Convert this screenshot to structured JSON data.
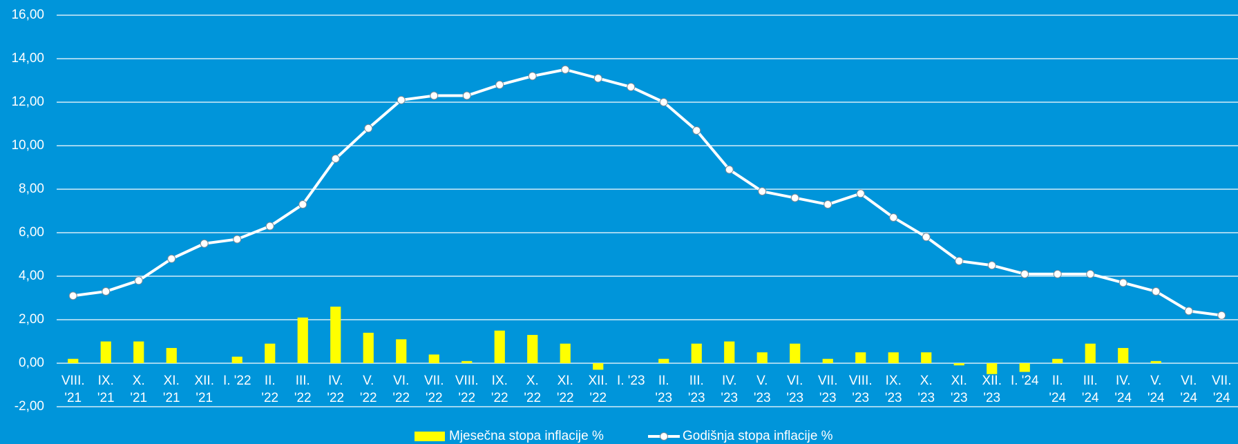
{
  "chart_data": {
    "type": "bar-line",
    "categories": [
      [
        "VIII.",
        "'21"
      ],
      [
        "IX.",
        "'21"
      ],
      [
        "X.",
        "'21"
      ],
      [
        "XI.",
        "'21"
      ],
      [
        "XII.",
        "'21"
      ],
      [
        "I. '22"
      ],
      [
        "II.",
        "'22"
      ],
      [
        "III.",
        "'22"
      ],
      [
        "IV.",
        "'22"
      ],
      [
        "V.",
        "'22"
      ],
      [
        "VI.",
        "'22"
      ],
      [
        "VII.",
        "'22"
      ],
      [
        "VIII.",
        "'22"
      ],
      [
        "IX.",
        "'22"
      ],
      [
        "X.",
        "'22"
      ],
      [
        "XI.",
        "'22"
      ],
      [
        "XII.",
        "'22"
      ],
      [
        "I. '23"
      ],
      [
        "II.",
        "'23"
      ],
      [
        "III.",
        "'23"
      ],
      [
        "IV.",
        "'23"
      ],
      [
        "V.",
        "'23"
      ],
      [
        "VI.",
        "'23"
      ],
      [
        "VII.",
        "'23"
      ],
      [
        "VIII.",
        "'23"
      ],
      [
        "IX.",
        "'23"
      ],
      [
        "X.",
        "'23"
      ],
      [
        "XI.",
        "'23"
      ],
      [
        "XII.",
        "'23"
      ],
      [
        "I. '24"
      ],
      [
        "II.",
        "'24"
      ],
      [
        "III.",
        "'24"
      ],
      [
        "IV.",
        "'24"
      ],
      [
        "V.",
        "'24"
      ],
      [
        "VI.",
        "'24"
      ],
      [
        "VII.",
        "'24"
      ]
    ],
    "series": [
      {
        "name": "Mjesečna stopa inflacije %",
        "type": "bar",
        "color": "#ffff00",
        "values": [
          0.2,
          1.0,
          1.0,
          0.7,
          0.0,
          0.3,
          0.9,
          2.1,
          2.6,
          1.4,
          1.1,
          0.4,
          0.1,
          1.5,
          1.3,
          0.9,
          -0.3,
          0.0,
          0.2,
          0.9,
          1.0,
          0.5,
          0.9,
          0.2,
          0.5,
          0.5,
          0.5,
          -0.1,
          -0.5,
          -0.4,
          0.2,
          0.9,
          0.7,
          0.1,
          0.0,
          0.0
        ]
      },
      {
        "name": "Godišnja stopa inflacije %",
        "type": "line",
        "color": "#ffffff",
        "values": [
          3.1,
          3.3,
          3.8,
          4.8,
          5.5,
          5.7,
          6.3,
          7.3,
          9.4,
          10.8,
          12.1,
          12.3,
          12.3,
          12.8,
          13.2,
          13.5,
          13.1,
          12.7,
          12.0,
          10.7,
          8.9,
          7.9,
          7.6,
          7.3,
          7.8,
          6.7,
          5.8,
          4.7,
          4.5,
          4.1,
          4.1,
          4.1,
          3.7,
          3.3,
          2.4,
          2.2
        ]
      }
    ],
    "ylim": [
      -2,
      16
    ],
    "yticks": [
      {
        "value": -2,
        "label": "-2,00"
      },
      {
        "value": 0,
        "label": "0,00"
      },
      {
        "value": 2,
        "label": "2,00"
      },
      {
        "value": 4,
        "label": "4,00"
      },
      {
        "value": 6,
        "label": "6,00"
      },
      {
        "value": 8,
        "label": "8,00"
      },
      {
        "value": 10,
        "label": "10,00"
      },
      {
        "value": 12,
        "label": "12,00"
      },
      {
        "value": 14,
        "label": "14,00"
      },
      {
        "value": 16,
        "label": "16,00"
      }
    ],
    "grid": true,
    "legend": "bottom"
  }
}
